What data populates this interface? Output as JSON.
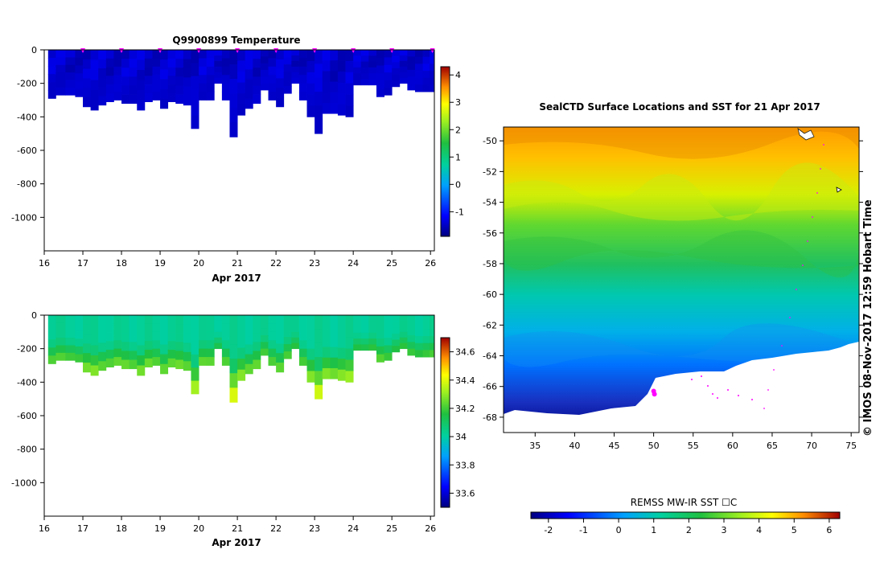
{
  "temperature_panel": {
    "title": "Q9900899  Temperature",
    "xlabel": "Apr 2017",
    "xticks": [
      "16",
      "17",
      "18",
      "19",
      "20",
      "21",
      "22",
      "23",
      "24",
      "25",
      "26"
    ],
    "yticks": [
      "0",
      "-200",
      "-400",
      "-600",
      "-800",
      "-1000"
    ],
    "colorbar_ticks": [
      "4",
      "3",
      "2",
      "1",
      "0",
      "-1"
    ]
  },
  "salinity_panel": {
    "xlabel": "Apr 2017",
    "xticks": [
      "16",
      "17",
      "18",
      "19",
      "20",
      "21",
      "22",
      "23",
      "24",
      "25",
      "26"
    ],
    "yticks": [
      "0",
      "-200",
      "-400",
      "-600",
      "-800",
      "-1000"
    ],
    "colorbar_ticks": [
      "34.6",
      "34.4",
      "34.2",
      "34",
      "33.8",
      "33.6"
    ]
  },
  "map_panel": {
    "title": "SealCTD Surface Locations and SST for 21 Apr 2017",
    "lat_ticks": [
      "-50",
      "-52",
      "-54",
      "-56",
      "-58",
      "-60",
      "-62",
      "-64",
      "-66",
      "-68"
    ],
    "lon_ticks": [
      "35",
      "40",
      "45",
      "50",
      "55",
      "60",
      "65",
      "70",
      "75"
    ],
    "colorbar_title": "REMSS MW-IR SST ☐C",
    "colorbar_ticks": [
      "-2",
      "-1",
      "0",
      "1",
      "2",
      "3",
      "4",
      "5",
      "6"
    ],
    "credit": "©  IMOS 08-Nov-2017 12:59 Hobart Time"
  },
  "chart_data": [
    {
      "type": "heatmap",
      "title": "Q9900899  Temperature",
      "xlabel": "Apr 2017",
      "ylabel": "",
      "xlim": [
        16,
        26.1
      ],
      "ylim": [
        -1200,
        0
      ],
      "colorbar_range": [
        -1.9,
        4.3
      ],
      "profile_days": [
        16.2,
        16.4,
        16.7,
        16.9,
        17.1,
        17.3,
        17.5,
        17.7,
        17.9,
        18.1,
        18.3,
        18.5,
        18.7,
        18.9,
        19.1,
        19.3,
        19.5,
        19.7,
        19.9,
        20.1,
        20.3,
        20.5,
        20.7,
        20.9,
        21.1,
        21.3,
        21.5,
        21.7,
        21.9,
        22.1,
        22.3,
        22.5,
        22.7,
        22.9,
        23.1,
        23.3,
        23.5,
        23.7,
        23.9,
        24.1,
        24.3,
        24.5,
        24.7,
        24.9,
        25.1,
        25.3,
        25.5,
        25.7,
        25.9,
        26.05
      ],
      "profile_max_depth": [
        -290,
        -270,
        -270,
        -280,
        -340,
        -360,
        -330,
        -310,
        -300,
        -320,
        -320,
        -360,
        -310,
        -300,
        -350,
        -310,
        -320,
        -330,
        -470,
        -300,
        -300,
        -200,
        -300,
        -520,
        -390,
        -350,
        -320,
        -240,
        -300,
        -340,
        -260,
        -200,
        -300,
        -400,
        -500,
        -380,
        -380,
        -390,
        -400,
        -210,
        -210,
        -210,
        -280,
        -270,
        -220,
        -200,
        -240,
        -250,
        -250,
        -250
      ],
      "surface_markers": [
        17,
        18,
        19,
        20,
        21,
        22,
        23,
        24,
        25,
        26.05
      ],
      "value_range_observed": [
        -1.6,
        -1.2
      ]
    },
    {
      "type": "heatmap",
      "title": "",
      "xlabel": "Apr 2017",
      "ylabel": "",
      "xlim": [
        16,
        26.1
      ],
      "ylim": [
        -1200,
        0
      ],
      "colorbar_range": [
        33.5,
        34.7
      ],
      "profile_days": [
        16.2,
        16.4,
        16.7,
        16.9,
        17.1,
        17.3,
        17.5,
        17.7,
        17.9,
        18.1,
        18.3,
        18.5,
        18.7,
        18.9,
        19.1,
        19.3,
        19.5,
        19.7,
        19.9,
        20.1,
        20.3,
        20.5,
        20.7,
        20.9,
        21.1,
        21.3,
        21.5,
        21.7,
        21.9,
        22.1,
        22.3,
        22.5,
        22.7,
        22.9,
        23.1,
        23.3,
        23.5,
        23.7,
        23.9,
        24.1,
        24.3,
        24.5,
        24.7,
        24.9,
        25.1,
        25.3,
        25.5,
        25.7,
        25.9,
        26.05
      ],
      "profile_max_depth": [
        -290,
        -270,
        -270,
        -280,
        -340,
        -360,
        -330,
        -310,
        -300,
        -320,
        -320,
        -360,
        -310,
        -300,
        -350,
        -310,
        -320,
        -330,
        -470,
        -300,
        -300,
        -200,
        -300,
        -520,
        -390,
        -350,
        -320,
        -240,
        -300,
        -340,
        -260,
        -200,
        -300,
        -400,
        -500,
        -380,
        -380,
        -390,
        -400,
        -210,
        -210,
        -210,
        -280,
        -270,
        -220,
        -200,
        -240,
        -250,
        -250,
        -250
      ],
      "value_range_observed": [
        34.0,
        34.4
      ]
    },
    {
      "type": "heatmap",
      "title": "SealCTD Surface Locations and SST for 21 Apr 2017",
      "xlabel": "",
      "ylabel": "",
      "xlim": [
        31,
        76
      ],
      "ylim": [
        -69,
        -49.1
      ],
      "colorbar_range": [
        -2.5,
        6.3
      ],
      "colorbar_label": "REMSS MW-IR SST ☐C",
      "sst_by_latitude": [
        [
          -50,
          5.0
        ],
        [
          -52,
          4.5
        ],
        [
          -54,
          3.4
        ],
        [
          -56,
          2.6
        ],
        [
          -58,
          2.0
        ],
        [
          -60,
          1.2
        ],
        [
          -62,
          0.4
        ],
        [
          -64,
          -0.4
        ],
        [
          -66,
          -1.2
        ],
        [
          -67.5,
          -1.8
        ]
      ],
      "seal_locations": [
        [
          50.0,
          -66.3
        ],
        [
          50.1,
          -66.5
        ]
      ]
    }
  ]
}
